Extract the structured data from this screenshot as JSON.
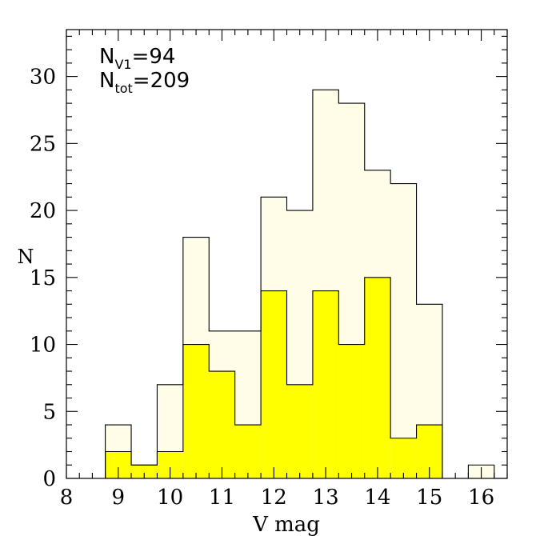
{
  "chart_data": {
    "type": "bar",
    "xlabel": "V mag",
    "ylabel": "N",
    "xlim": [
      8,
      16.5
    ],
    "ylim": [
      0,
      33.5
    ],
    "bin_width": 0.5,
    "xticks": [
      8,
      9,
      10,
      11,
      12,
      13,
      14,
      15,
      16
    ],
    "yticks": [
      0,
      5,
      10,
      15,
      20,
      25,
      30
    ],
    "x_minor_step": 0.25,
    "y_minor_step": 1,
    "series": [
      {
        "name": "N_tot",
        "color": "#fffde8",
        "bins": [
          {
            "x0": 8.75,
            "x1": 9.25,
            "value": 4
          },
          {
            "x0": 9.25,
            "x1": 9.75,
            "value": 1
          },
          {
            "x0": 9.75,
            "x1": 10.25,
            "value": 7
          },
          {
            "x0": 10.25,
            "x1": 10.75,
            "value": 18
          },
          {
            "x0": 10.75,
            "x1": 11.25,
            "value": 11
          },
          {
            "x0": 11.25,
            "x1": 11.75,
            "value": 11
          },
          {
            "x0": 11.75,
            "x1": 12.25,
            "value": 21
          },
          {
            "x0": 12.25,
            "x1": 12.75,
            "value": 20
          },
          {
            "x0": 12.75,
            "x1": 13.25,
            "value": 29
          },
          {
            "x0": 13.25,
            "x1": 13.75,
            "value": 28
          },
          {
            "x0": 13.75,
            "x1": 14.25,
            "value": 23
          },
          {
            "x0": 14.25,
            "x1": 14.75,
            "value": 22
          },
          {
            "x0": 14.75,
            "x1": 15.25,
            "value": 13
          },
          {
            "x0": 15.75,
            "x1": 16.25,
            "value": 1
          }
        ]
      },
      {
        "name": "N_V1",
        "color": "#ffff00",
        "bins": [
          {
            "x0": 8.75,
            "x1": 9.25,
            "value": 2
          },
          {
            "x0": 9.25,
            "x1": 9.75,
            "value": 1
          },
          {
            "x0": 9.75,
            "x1": 10.25,
            "value": 2
          },
          {
            "x0": 10.25,
            "x1": 10.75,
            "value": 10
          },
          {
            "x0": 10.75,
            "x1": 11.25,
            "value": 8
          },
          {
            "x0": 11.25,
            "x1": 11.75,
            "value": 4
          },
          {
            "x0": 11.75,
            "x1": 12.25,
            "value": 14
          },
          {
            "x0": 12.25,
            "x1": 12.75,
            "value": 7
          },
          {
            "x0": 12.75,
            "x1": 13.25,
            "value": 14
          },
          {
            "x0": 13.25,
            "x1": 13.75,
            "value": 10
          },
          {
            "x0": 13.75,
            "x1": 14.25,
            "value": 15
          },
          {
            "x0": 14.25,
            "x1": 14.75,
            "value": 3
          },
          {
            "x0": 14.75,
            "x1": 15.25,
            "value": 4
          }
        ]
      }
    ],
    "annotations": [
      {
        "base": "N",
        "sub": "V1",
        "text": "=94"
      },
      {
        "base": "N",
        "sub": "tot",
        "text": "=209"
      }
    ]
  }
}
